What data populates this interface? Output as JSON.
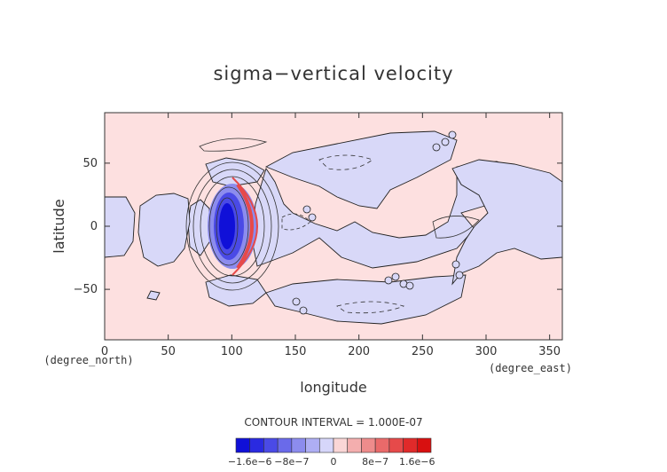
{
  "chart_data": {
    "type": "heatmap",
    "title": "sigma−vertical velocity",
    "xlabel": "longitude",
    "ylabel": "latitude",
    "x_unit_label": "(degree_east)",
    "y_unit_label": "(degree_north)",
    "xlim": [
      0,
      360
    ],
    "ylim": [
      -90,
      90
    ],
    "x_ticks": [
      0,
      50,
      100,
      150,
      200,
      250,
      300,
      350
    ],
    "y_ticks": [
      -50,
      0,
      50
    ],
    "grid": false,
    "contour_interval_text": "CONTOUR INTERVAL = 1.000E-07",
    "colorbar": {
      "labels": [
        "−1.6e−6",
        "−8e−7",
        "0",
        "8e−7",
        "1.6e−6"
      ],
      "label_values": [
        -1.6e-06,
        -8e-07,
        0,
        8e-07,
        1.6e-06
      ],
      "colors": [
        "#1010d8",
        "#2a2ae0",
        "#4a4ae6",
        "#6a6aea",
        "#8c8cee",
        "#aeaef4",
        "#d6d6fa",
        "#fad6d6",
        "#f4aeae",
        "#ee8c8c",
        "#ea6a6a",
        "#e64a4a",
        "#e02a2a",
        "#d81010"
      ]
    },
    "colors": {
      "positive_background": "#fde0e0",
      "negative_region": "#d8d8f8"
    }
  }
}
